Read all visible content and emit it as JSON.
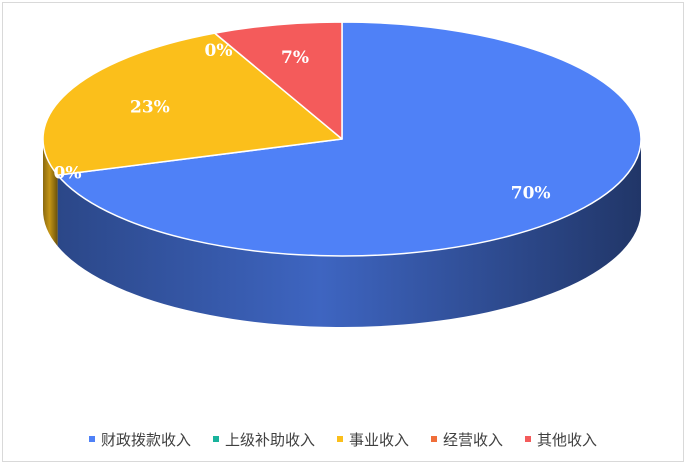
{
  "chart_data": {
    "type": "pie",
    "style": "3d",
    "series": [
      {
        "name": "财政拨款收入",
        "value": 70,
        "label": "70%",
        "color": "#4f81f7"
      },
      {
        "name": "上级补助收入",
        "value": 0,
        "label": "0%",
        "color": "#19b39c"
      },
      {
        "name": "事业收入",
        "value": 23,
        "label": "23%",
        "color": "#fbbf1b"
      },
      {
        "name": "经营收入",
        "value": 0,
        "label": "0%",
        "color": "#f06e3a"
      },
      {
        "name": "其他收入",
        "value": 7,
        "label": "7%",
        "color": "#f45b5b"
      }
    ],
    "legend_position": "bottom"
  }
}
